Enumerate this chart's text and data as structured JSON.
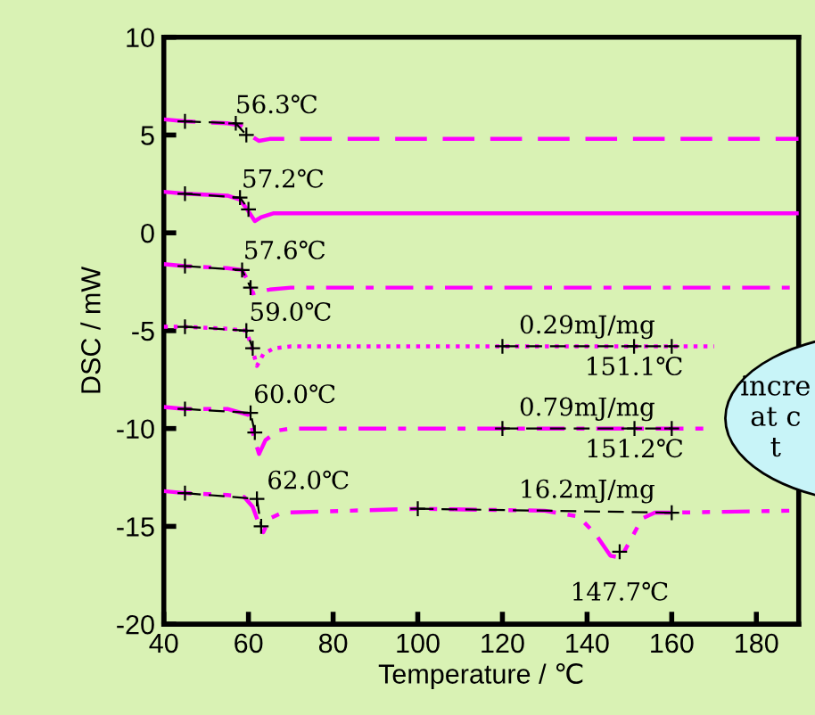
{
  "chart_data": {
    "type": "line",
    "xlabel": "Temperature / ℃",
    "ylabel": "DSC / mW",
    "xlim": [
      40,
      190
    ],
    "xticks": [
      40,
      60,
      80,
      100,
      120,
      140,
      160,
      180
    ],
    "ylim": [
      -20,
      10
    ],
    "yticks": [
      -20,
      -15,
      -10,
      -5,
      0,
      5,
      10
    ],
    "grid": false,
    "legend": false,
    "series": [
      {
        "color": "#ff00ff",
        "line_style": "dashed",
        "x": [
          40,
          45,
          55,
          58,
          59.5,
          61,
          62.5,
          65,
          70,
          100,
          190
        ],
        "values": [
          5.8,
          5.7,
          5.6,
          5.5,
          5.3,
          4.9,
          4.7,
          4.8,
          4.8,
          4.8,
          4.8
        ]
      },
      {
        "color": "#ff00ff",
        "line_style": "solid",
        "x": [
          40,
          45,
          55,
          58,
          60,
          61.5,
          63,
          66,
          70,
          100,
          190
        ],
        "values": [
          2.1,
          2.0,
          1.9,
          1.7,
          1.1,
          0.6,
          0.8,
          1.0,
          1.0,
          1.0,
          1.0
        ]
      },
      {
        "color": "#ff00ff",
        "line_style": "dashdot",
        "x": [
          40,
          45,
          55,
          58.5,
          60,
          61,
          62.5,
          65,
          70,
          100,
          190
        ],
        "values": [
          -1.6,
          -1.7,
          -1.8,
          -1.9,
          -2.5,
          -3.1,
          -3.0,
          -2.9,
          -2.8,
          -2.8,
          -2.8
        ]
      },
      {
        "color": "#ff00ff",
        "line_style": "dotted",
        "x": [
          40,
          45,
          55,
          59.5,
          61,
          62,
          63.5,
          66,
          70,
          100,
          170
        ],
        "values": [
          -4.8,
          -4.8,
          -4.9,
          -5.0,
          -6.0,
          -6.8,
          -6.2,
          -5.9,
          -5.8,
          -5.8,
          -5.8
        ]
      },
      {
        "color": "#ff00ff",
        "line_style": "dashdot",
        "x": [
          40,
          45,
          55,
          60,
          61.5,
          62.5,
          64,
          67,
          70,
          100,
          168
        ],
        "values": [
          -8.9,
          -9.0,
          -9.0,
          -9.3,
          -10.6,
          -11.3,
          -10.6,
          -10.1,
          -10.0,
          -10.0,
          -10.0
        ]
      },
      {
        "color": "#ff00ff",
        "line_style": "dashdotdot",
        "x": [
          40,
          45,
          55,
          59,
          61,
          62.5,
          63.5,
          65,
          68,
          100,
          130,
          138,
          142,
          145.5,
          148,
          150,
          153,
          156,
          160,
          188
        ],
        "values": [
          -13.2,
          -13.3,
          -13.4,
          -13.5,
          -14.0,
          -14.9,
          -15.3,
          -14.6,
          -14.3,
          -14.1,
          -14.2,
          -14.5,
          -15.4,
          -16.5,
          -16.6,
          -15.8,
          -14.6,
          -14.3,
          -14.3,
          -14.2
        ]
      },
      {
        "color": "#000000",
        "line_style": "dashed",
        "marker": "cross",
        "x": [
          45,
          57,
          59.5
        ],
        "values": [
          5.7,
          5.6,
          5.0
        ]
      },
      {
        "color": "#000000",
        "line_style": "dashed",
        "marker": "cross",
        "x": [
          45,
          58,
          60
        ],
        "values": [
          2.0,
          1.8,
          1.2
        ]
      },
      {
        "color": "#000000",
        "line_style": "dashed",
        "marker": "cross",
        "x": [
          45,
          58.5,
          60.5
        ],
        "values": [
          -1.7,
          -1.9,
          -2.8
        ]
      },
      {
        "color": "#000000",
        "line_style": "dashed",
        "marker": "cross",
        "x": [
          45,
          59.5,
          61
        ],
        "values": [
          -4.8,
          -5.0,
          -5.9
        ]
      },
      {
        "color": "#000000",
        "line_style": "dashed",
        "marker": "cross",
        "x": [
          45,
          60.5,
          61.5
        ],
        "values": [
          -9.0,
          -9.2,
          -10.2
        ]
      },
      {
        "color": "#000000",
        "line_style": "dashed",
        "marker": "cross",
        "x": [
          45,
          62,
          63
        ],
        "values": [
          -13.3,
          -13.6,
          -15.0
        ]
      },
      {
        "color": "#000000",
        "line_style": "dashed",
        "marker": "cross",
        "x": [
          120,
          151.1,
          160
        ],
        "values": [
          -5.8,
          -5.8,
          -5.8
        ]
      },
      {
        "color": "#000000",
        "line_style": "dashed",
        "marker": "cross",
        "x": [
          120,
          151.2,
          160
        ],
        "values": [
          -10.0,
          -10.0,
          -10.0
        ]
      },
      {
        "color": "#000000",
        "line_style": "dashed",
        "marker": "cross",
        "x": [
          100,
          160
        ],
        "values": [
          -14.1,
          -14.3
        ]
      },
      {
        "color": "#000000",
        "type": "scatter",
        "marker": "cross",
        "x": [
          147.7
        ],
        "values": [
          -16.3
        ]
      }
    ],
    "annotations": [
      {
        "text": "56.3℃",
        "x": 56.3,
        "y": 5.6
      },
      {
        "text": "57.2℃",
        "x": 57.2,
        "y": 1.8
      },
      {
        "text": "57.6℃",
        "x": 57.6,
        "y": -1.85
      },
      {
        "text": "59.0℃",
        "x": 59.0,
        "y": -5.0
      },
      {
        "text": "60.0℃",
        "x": 60.0,
        "y": -9.2
      },
      {
        "text": "62.0℃",
        "x": 62.0,
        "y": -13.6
      },
      {
        "text": "0.29mJ/mg",
        "x": 140,
        "y": -5.8
      },
      {
        "text": "151.1℃",
        "x": 151.1,
        "y": -5.8
      },
      {
        "text": "0.79mJ/mg",
        "x": 140,
        "y": -10.0
      },
      {
        "text": "151.2℃",
        "x": 151.2,
        "y": -10.0
      },
      {
        "text": "16.2mJ/mg",
        "x": 140,
        "y": -14.2
      },
      {
        "text": "147.7℃",
        "x": 147.7,
        "y": -16.3
      },
      "incre\nat c\nt"
    ]
  }
}
